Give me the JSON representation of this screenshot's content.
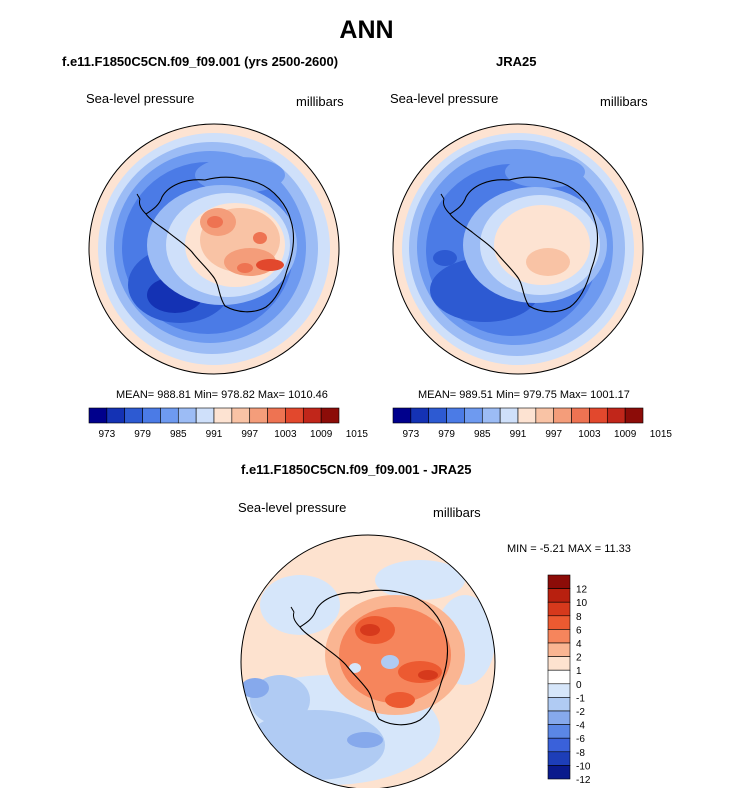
{
  "title": "ANN",
  "panels": [
    {
      "subtitle": "f.e11.F1850C5CN.f09_f09.001 (yrs 2500-2600)",
      "var_label": "Sea-level pressure",
      "units": "millibars",
      "stats": "MEAN= 988.81  Min= 978.82  Max= 1010.46"
    },
    {
      "subtitle": "JRA25",
      "var_label": "Sea-level pressure",
      "units": "millibars",
      "stats": "MEAN= 989.51  Min= 979.75  Max= 1001.17"
    }
  ],
  "diff_panel": {
    "subtitle": "f.e11.F1850C5CN.f09_f09.001 - JRA25",
    "var_label": "Sea-level pressure",
    "units": "millibars",
    "stats": "MIN =  -5.21 MAX =  11.33"
  },
  "colors": {
    "abs_scale": [
      "#00008c",
      "#1432b4",
      "#2d5ad2",
      "#4b7be6",
      "#6e9af0",
      "#9cbcf5",
      "#cfe0fa",
      "#fde3d2",
      "#f9c3a5",
      "#f49d7a",
      "#ee7352",
      "#e2482d",
      "#c1261a",
      "#8c0c08"
    ],
    "diff_scale": [
      "#8c0c08",
      "#b8200f",
      "#d6391c",
      "#ec5a31",
      "#f6855c",
      "#fab592",
      "#fde2cf",
      "#ffffff",
      "#d6e6fa",
      "#b0cbf3",
      "#86a9ec",
      "#5b87e6",
      "#3a61da",
      "#1d3eb8",
      "#0a1a8c"
    ]
  },
  "chart_data": [
    {
      "type": "heatmap",
      "projection": "south-polar-stereographic",
      "title": "f.e11.F1850C5CN.f09_f09.001 (yrs 2500-2600)",
      "variable": "Sea-level pressure",
      "units": "millibars",
      "mean": 988.81,
      "min": 978.82,
      "max": 1010.46,
      "colorbar_ticks": [
        "973",
        "979",
        "985",
        "991",
        "997",
        "1003",
        "1009",
        "1015"
      ]
    },
    {
      "type": "heatmap",
      "projection": "south-polar-stereographic",
      "title": "JRA25",
      "variable": "Sea-level pressure",
      "units": "millibars",
      "mean": 989.51,
      "min": 979.75,
      "max": 1001.17,
      "colorbar_ticks": [
        "973",
        "979",
        "985",
        "991",
        "997",
        "1003",
        "1009",
        "1015"
      ]
    },
    {
      "type": "heatmap",
      "projection": "south-polar-stereographic",
      "title": "f.e11.F1850C5CN.f09_f09.001 - JRA25",
      "variable": "Sea-level pressure",
      "units": "millibars",
      "min": -5.21,
      "max": 11.33,
      "colorbar_ticks": [
        "12",
        "10",
        "8",
        "6",
        "4",
        "2",
        "1",
        "0",
        "-1",
        "-2",
        "-4",
        "-6",
        "-8",
        "-10",
        "-12"
      ]
    }
  ]
}
